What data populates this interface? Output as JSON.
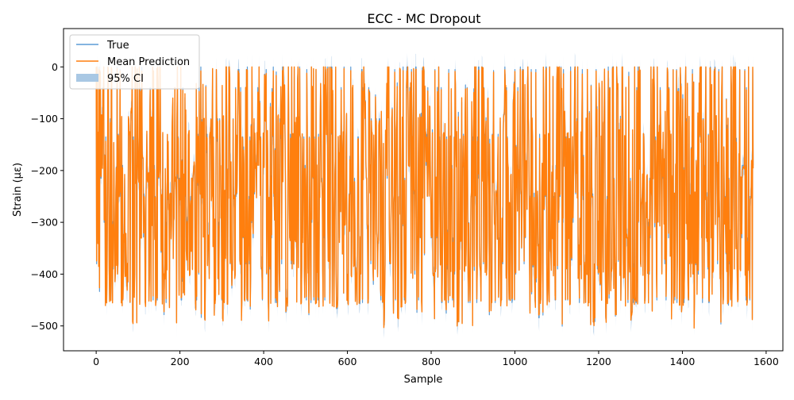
{
  "chart_data": {
    "type": "line",
    "title": "ECC - MC Dropout",
    "xlabel": "Sample",
    "ylabel": "Strain (με)",
    "xlim": [
      -78,
      1640
    ],
    "ylim": [
      -548,
      74
    ],
    "xticks": [
      0,
      200,
      400,
      600,
      800,
      1000,
      1200,
      1400,
      1600
    ],
    "xtick_labels": [
      "0",
      "200",
      "400",
      "600",
      "800",
      "1000",
      "1200",
      "1400",
      "1600"
    ],
    "yticks": [
      0,
      -100,
      -200,
      -300,
      -400,
      -500
    ],
    "ytick_labels": [
      "0",
      "−100",
      "−200",
      "−300",
      "−400",
      "−500"
    ],
    "grid": false,
    "legend_position": "top-left",
    "n_samples": 1570,
    "value_range": [
      -505,
      0
    ],
    "ci_range": [
      -530,
      50
    ],
    "series": [
      {
        "name": "True",
        "color": "#5b9bd5",
        "style": "line"
      },
      {
        "name": "Mean Prediction",
        "color": "#ff7f0e",
        "style": "line"
      },
      {
        "name": "95% CI",
        "color": "#a9c8e4",
        "style": "band"
      }
    ]
  }
}
